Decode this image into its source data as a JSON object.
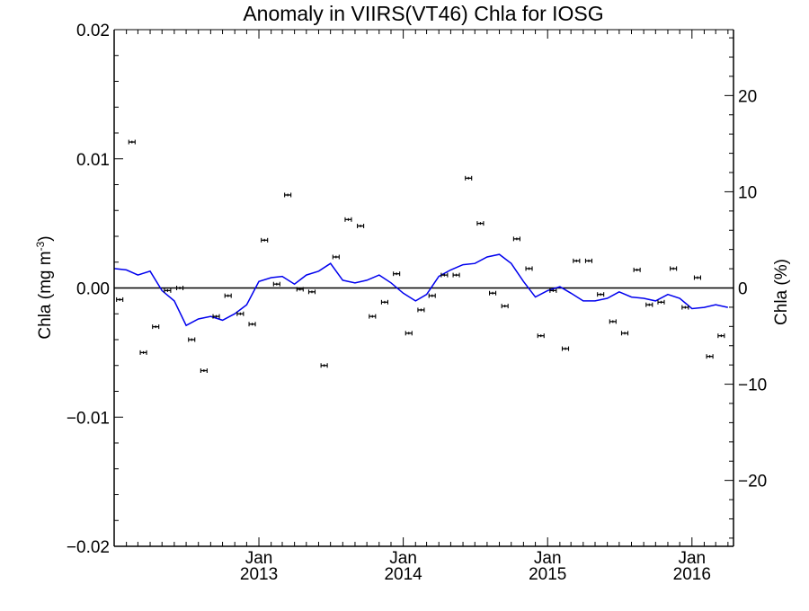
{
  "chart_data": {
    "type": "scatter",
    "title": "Anomaly in VIIRS(VT46) Chla for IOSG",
    "ylabel_left": "Chla (mg m",
    "ylabel_left_sup": "-3",
    "ylabel_left_end": ")",
    "ylabel_right": "Chla (%)",
    "x_range": [
      "2012-01-01",
      "2016-04-15"
    ],
    "y_left_range": [
      -0.02,
      0.02
    ],
    "y_right_range": [
      -26.85,
      26.85
    ],
    "left_ticks": [
      {
        "value": 0.02,
        "label": "0.02"
      },
      {
        "value": 0.01,
        "label": "0.01"
      },
      {
        "value": 0.0,
        "label": "0.00"
      },
      {
        "value": -0.01,
        "label": "−0.01"
      },
      {
        "value": -0.02,
        "label": "−0.02"
      }
    ],
    "right_ticks": [
      {
        "value": 20,
        "label": "20"
      },
      {
        "value": 10,
        "label": "10"
      },
      {
        "value": 0,
        "label": "0"
      },
      {
        "value": -10,
        "label": "−10"
      },
      {
        "value": -20,
        "label": "−20"
      }
    ],
    "x_ticks": [
      {
        "date": "2013-01-01",
        "label1": "Jan",
        "label2": "2013"
      },
      {
        "date": "2014-01-01",
        "label1": "Jan",
        "label2": "2014"
      },
      {
        "date": "2015-01-01",
        "label1": "Jan",
        "label2": "2015"
      },
      {
        "date": "2016-01-01",
        "label1": "Jan",
        "label2": "2016"
      }
    ],
    "zero_line": 0,
    "colors": {
      "points": "#000000",
      "line": "#0000ee",
      "axes": "#000000"
    },
    "series": [
      {
        "kind": "monthly anomaly (left axis)",
        "marker": "error-bar",
        "points": [
          {
            "x": "2012-01-15",
            "y": -0.0009
          },
          {
            "x": "2012-02-15",
            "y": 0.0113
          },
          {
            "x": "2012-03-15",
            "y": -0.005
          },
          {
            "x": "2012-04-15",
            "y": -0.003
          },
          {
            "x": "2012-05-15",
            "y": -0.0002
          },
          {
            "x": "2012-06-15",
            "y": 0.0
          },
          {
            "x": "2012-07-15",
            "y": -0.004
          },
          {
            "x": "2012-08-15",
            "y": -0.0064
          },
          {
            "x": "2012-09-15",
            "y": -0.0022
          },
          {
            "x": "2012-10-15",
            "y": -0.0006
          },
          {
            "x": "2012-11-15",
            "y": -0.002
          },
          {
            "x": "2012-12-15",
            "y": -0.0028
          },
          {
            "x": "2013-01-15",
            "y": 0.0037
          },
          {
            "x": "2013-02-15",
            "y": 0.0003
          },
          {
            "x": "2013-03-15",
            "y": 0.0072
          },
          {
            "x": "2013-04-15",
            "y": -0.0001
          },
          {
            "x": "2013-05-15",
            "y": -0.0003
          },
          {
            "x": "2013-06-15",
            "y": -0.006
          },
          {
            "x": "2013-07-15",
            "y": 0.0024
          },
          {
            "x": "2013-08-15",
            "y": 0.0053
          },
          {
            "x": "2013-09-15",
            "y": 0.0048
          },
          {
            "x": "2013-10-15",
            "y": -0.0022
          },
          {
            "x": "2013-11-15",
            "y": -0.0011
          },
          {
            "x": "2013-12-15",
            "y": 0.0011
          },
          {
            "x": "2014-01-15",
            "y": -0.0035
          },
          {
            "x": "2014-02-15",
            "y": -0.0017
          },
          {
            "x": "2014-03-15",
            "y": -0.0006
          },
          {
            "x": "2014-04-15",
            "y": 0.001
          },
          {
            "x": "2014-05-15",
            "y": 0.001
          },
          {
            "x": "2014-06-15",
            "y": 0.0085
          },
          {
            "x": "2014-07-15",
            "y": 0.005
          },
          {
            "x": "2014-08-15",
            "y": -0.0004
          },
          {
            "x": "2014-09-15",
            "y": -0.0014
          },
          {
            "x": "2014-10-15",
            "y": 0.0038
          },
          {
            "x": "2014-11-15",
            "y": 0.0015
          },
          {
            "x": "2014-12-15",
            "y": -0.0037
          },
          {
            "x": "2015-01-15",
            "y": -0.0002
          },
          {
            "x": "2015-02-15",
            "y": -0.0047
          },
          {
            "x": "2015-03-15",
            "y": 0.0021
          },
          {
            "x": "2015-04-15",
            "y": 0.0021
          },
          {
            "x": "2015-05-15",
            "y": -0.0005
          },
          {
            "x": "2015-06-15",
            "y": -0.0026
          },
          {
            "x": "2015-07-15",
            "y": -0.0035
          },
          {
            "x": "2015-08-15",
            "y": 0.0014
          },
          {
            "x": "2015-09-15",
            "y": -0.0013
          },
          {
            "x": "2015-10-15",
            "y": -0.0011
          },
          {
            "x": "2015-11-15",
            "y": 0.0015
          },
          {
            "x": "2015-12-15",
            "y": -0.0015
          },
          {
            "x": "2016-01-15",
            "y": 0.0008
          },
          {
            "x": "2016-02-15",
            "y": -0.0053
          },
          {
            "x": "2016-03-15",
            "y": -0.0037
          }
        ]
      },
      {
        "kind": "smoothed anomaly line (left axis)",
        "marker": "line",
        "points": [
          {
            "x": "2012-01-01",
            "y": 0.0015
          },
          {
            "x": "2012-02-01",
            "y": 0.0014
          },
          {
            "x": "2012-03-01",
            "y": 0.001
          },
          {
            "x": "2012-04-01",
            "y": 0.0013
          },
          {
            "x": "2012-05-01",
            "y": -0.0002
          },
          {
            "x": "2012-06-01",
            "y": -0.001
          },
          {
            "x": "2012-07-01",
            "y": -0.0029
          },
          {
            "x": "2012-08-01",
            "y": -0.0024
          },
          {
            "x": "2012-09-01",
            "y": -0.0022
          },
          {
            "x": "2012-10-01",
            "y": -0.0025
          },
          {
            "x": "2012-11-01",
            "y": -0.002
          },
          {
            "x": "2012-12-01",
            "y": -0.0013
          },
          {
            "x": "2013-01-01",
            "y": 0.0005
          },
          {
            "x": "2013-02-01",
            "y": 0.0008
          },
          {
            "x": "2013-03-01",
            "y": 0.0009
          },
          {
            "x": "2013-04-01",
            "y": 0.0003
          },
          {
            "x": "2013-05-01",
            "y": 0.001
          },
          {
            "x": "2013-06-01",
            "y": 0.0013
          },
          {
            "x": "2013-07-01",
            "y": 0.0019
          },
          {
            "x": "2013-08-01",
            "y": 0.0006
          },
          {
            "x": "2013-09-01",
            "y": 0.0004
          },
          {
            "x": "2013-10-01",
            "y": 0.0006
          },
          {
            "x": "2013-11-01",
            "y": 0.001
          },
          {
            "x": "2013-12-01",
            "y": 0.0004
          },
          {
            "x": "2014-01-01",
            "y": -0.0004
          },
          {
            "x": "2014-02-01",
            "y": -0.001
          },
          {
            "x": "2014-03-01",
            "y": -0.0005
          },
          {
            "x": "2014-04-01",
            "y": 0.0009
          },
          {
            "x": "2014-05-01",
            "y": 0.0014
          },
          {
            "x": "2014-06-01",
            "y": 0.0018
          },
          {
            "x": "2014-07-01",
            "y": 0.0019
          },
          {
            "x": "2014-08-01",
            "y": 0.0024
          },
          {
            "x": "2014-09-01",
            "y": 0.0026
          },
          {
            "x": "2014-10-01",
            "y": 0.0019
          },
          {
            "x": "2014-11-01",
            "y": 0.0005
          },
          {
            "x": "2014-12-01",
            "y": -0.0007
          },
          {
            "x": "2015-01-01",
            "y": -0.0002
          },
          {
            "x": "2015-02-01",
            "y": 0.0001
          },
          {
            "x": "2015-03-01",
            "y": -0.0004
          },
          {
            "x": "2015-04-01",
            "y": -0.001
          },
          {
            "x": "2015-05-01",
            "y": -0.001
          },
          {
            "x": "2015-06-01",
            "y": -0.0008
          },
          {
            "x": "2015-07-01",
            "y": -0.0003
          },
          {
            "x": "2015-08-01",
            "y": -0.0007
          },
          {
            "x": "2015-09-01",
            "y": -0.0008
          },
          {
            "x": "2015-10-01",
            "y": -0.001
          },
          {
            "x": "2015-11-01",
            "y": -0.0005
          },
          {
            "x": "2015-12-01",
            "y": -0.0008
          },
          {
            "x": "2016-01-01",
            "y": -0.0016
          },
          {
            "x": "2016-02-01",
            "y": -0.0015
          },
          {
            "x": "2016-03-01",
            "y": -0.0013
          },
          {
            "x": "2016-04-01",
            "y": -0.0015
          }
        ]
      }
    ]
  }
}
